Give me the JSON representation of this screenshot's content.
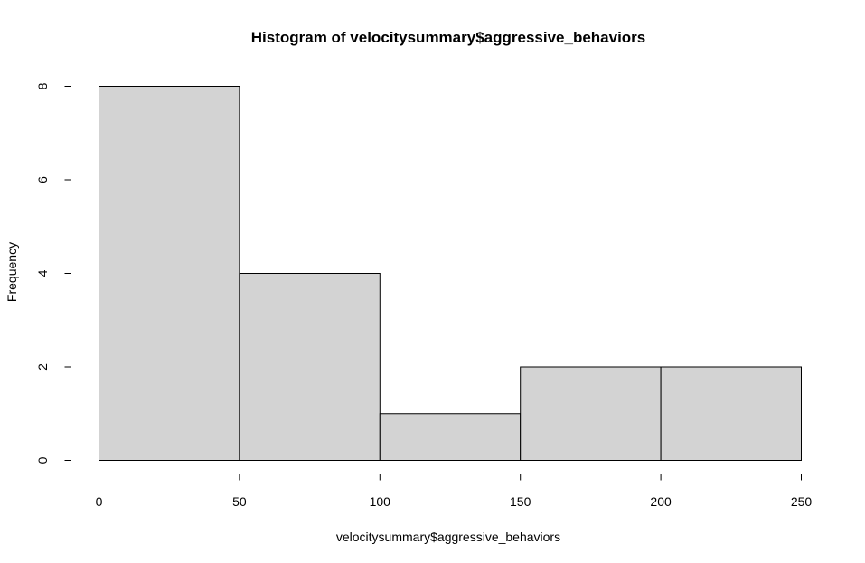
{
  "chart_data": {
    "type": "bar",
    "title": "Histogram of velocitysummary$aggressive_behaviors",
    "xlabel": "velocitysummary$aggressive_behaviors",
    "ylabel": "Frequency",
    "bins": [
      {
        "from": 0,
        "to": 50,
        "count": 8
      },
      {
        "from": 50,
        "to": 100,
        "count": 4
      },
      {
        "from": 100,
        "to": 150,
        "count": 1
      },
      {
        "from": 150,
        "to": 200,
        "count": 2
      },
      {
        "from": 200,
        "to": 250,
        "count": 2
      }
    ],
    "xlim": [
      0,
      250
    ],
    "ylim": [
      0,
      8
    ],
    "x_ticks": [
      "0",
      "50",
      "100",
      "150",
      "200",
      "250"
    ],
    "y_ticks": [
      "0",
      "2",
      "4",
      "6",
      "8"
    ],
    "grid": false,
    "colors": {
      "bar_fill": "#d3d3d3",
      "bar_stroke": "#000000"
    }
  }
}
